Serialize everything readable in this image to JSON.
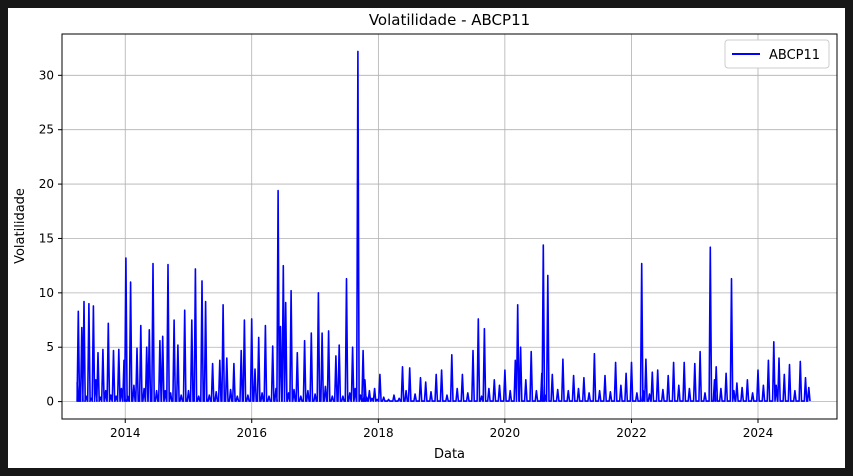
{
  "chart_data": {
    "type": "line",
    "title": "Volatilidade - ABCP11",
    "xlabel": "Data",
    "ylabel": "Volatilidade",
    "x_range": [
      "2013-01-01",
      "2025-04-01"
    ],
    "ylim": [
      -1.6,
      33.8
    ],
    "x_ticks": [
      "2014",
      "2016",
      "2018",
      "2020",
      "2022",
      "2024"
    ],
    "y_ticks": [
      "0",
      "5",
      "10",
      "15",
      "20",
      "25",
      "30"
    ],
    "grid": true,
    "legend_position": "top-right",
    "colors": {
      "series": "#0000ff"
    },
    "series": [
      {
        "name": "ABCP11",
        "x": [
          "2013-03-30",
          "2013-04-05",
          "2013-04-12",
          "2013-04-25",
          "2013-05-08",
          "2013-05-20",
          "2013-06-05",
          "2013-06-18",
          "2013-07-01",
          "2013-07-15",
          "2013-07-28",
          "2013-08-10",
          "2013-08-25",
          "2013-09-10",
          "2013-09-25",
          "2013-10-10",
          "2013-10-25",
          "2013-11-10",
          "2013-11-25",
          "2013-12-10",
          "2013-12-25",
          "2014-01-05",
          "2014-01-15",
          "2014-02-01",
          "2014-02-20",
          "2014-03-10",
          "2014-04-01",
          "2014-04-20",
          "2014-05-05",
          "2014-05-20",
          "2014-06-10",
          "2014-07-01",
          "2014-07-20",
          "2014-08-05",
          "2014-08-20",
          "2014-09-05",
          "2014-09-20",
          "2014-10-10",
          "2014-11-01",
          "2014-11-20",
          "2014-12-10",
          "2015-01-01",
          "2015-01-20",
          "2015-02-10",
          "2015-03-01",
          "2015-03-20",
          "2015-04-10",
          "2015-05-01",
          "2015-05-20",
          "2015-06-10",
          "2015-07-01",
          "2015-07-20",
          "2015-08-10",
          "2015-09-01",
          "2015-09-20",
          "2015-10-10",
          "2015-11-01",
          "2015-11-20",
          "2015-12-10",
          "2016-01-01",
          "2016-01-20",
          "2016-02-10",
          "2016-03-01",
          "2016-03-20",
          "2016-04-10",
          "2016-05-01",
          "2016-05-20",
          "2016-06-01",
          "2016-06-15",
          "2016-07-01",
          "2016-07-15",
          "2016-08-01",
          "2016-08-15",
          "2016-09-01",
          "2016-09-20",
          "2016-10-10",
          "2016-11-01",
          "2016-11-20",
          "2016-12-10",
          "2017-01-01",
          "2017-01-20",
          "2017-02-10",
          "2017-03-01",
          "2017-03-20",
          "2017-04-10",
          "2017-05-01",
          "2017-05-20",
          "2017-06-10",
          "2017-07-01",
          "2017-07-20",
          "2017-08-05",
          "2017-08-20",
          "2017-09-05",
          "2017-09-20",
          "2017-10-05",
          "2017-10-10",
          "2017-10-15",
          "2017-10-25",
          "2017-11-10",
          "2017-11-25",
          "2017-12-10",
          "2017-12-25",
          "2018-01-10",
          "2018-02-01",
          "2018-03-01",
          "2018-04-01",
          "2018-05-01",
          "2018-05-20",
          "2018-06-10",
          "2018-07-01",
          "2018-08-01",
          "2018-09-01",
          "2018-10-01",
          "2018-11-01",
          "2018-12-01",
          "2019-01-01",
          "2019-02-01",
          "2019-03-01",
          "2019-04-01",
          "2019-05-01",
          "2019-06-01",
          "2019-07-01",
          "2019-08-01",
          "2019-08-20",
          "2019-09-05",
          "2019-10-01",
          "2019-11-01",
          "2019-12-01",
          "2020-01-01",
          "2020-02-01",
          "2020-03-01",
          "2020-03-15",
          "2020-04-01",
          "2020-05-01",
          "2020-06-01",
          "2020-07-01",
          "2020-08-01",
          "2020-08-10",
          "2020-08-20",
          "2020-09-05",
          "2020-10-01",
          "2020-11-01",
          "2020-12-01",
          "2021-01-01",
          "2021-02-01",
          "2021-03-01",
          "2021-04-01",
          "2021-05-01",
          "2021-06-01",
          "2021-07-01",
          "2021-08-01",
          "2021-09-01",
          "2021-10-01",
          "2021-11-01",
          "2021-12-01",
          "2022-01-01",
          "2022-02-01",
          "2022-03-01",
          "2022-03-10",
          "2022-03-25",
          "2022-04-15",
          "2022-05-01",
          "2022-06-01",
          "2022-07-01",
          "2022-08-01",
          "2022-09-01",
          "2022-10-01",
          "2022-11-01",
          "2022-12-01",
          "2023-01-01",
          "2023-02-01",
          "2023-03-01",
          "2023-04-01",
          "2023-04-25",
          "2023-05-05",
          "2023-06-01",
          "2023-07-01",
          "2023-08-01",
          "2023-08-15",
          "2023-09-01",
          "2023-10-01",
          "2023-11-01",
          "2023-12-01",
          "2024-01-01",
          "2024-02-01",
          "2024-03-01",
          "2024-04-01",
          "2024-04-15",
          "2024-05-01",
          "2024-06-01",
          "2024-07-01",
          "2024-08-01",
          "2024-09-01",
          "2024-10-01",
          "2024-10-20"
        ],
        "y": [
          1.8,
          8.3,
          0.2,
          6.8,
          9.2,
          0.5,
          9.0,
          0.3,
          8.8,
          2.0,
          4.5,
          0.4,
          4.8,
          1.0,
          7.2,
          0.6,
          4.7,
          0.5,
          4.8,
          1.2,
          3.8,
          13.2,
          0.5,
          11.0,
          1.5,
          4.9,
          7.0,
          1.2,
          5.0,
          6.6,
          12.7,
          1.0,
          5.6,
          6.0,
          1.0,
          12.6,
          0.8,
          7.5,
          5.2,
          0.6,
          8.4,
          1.0,
          7.5,
          12.2,
          0.5,
          11.1,
          9.2,
          0.6,
          3.5,
          0.9,
          3.8,
          8.9,
          4.0,
          1.1,
          3.5,
          0.5,
          4.7,
          7.5,
          0.6,
          7.6,
          3.0,
          5.9,
          0.8,
          7.0,
          0.5,
          5.1,
          1.2,
          19.4,
          6.9,
          12.5,
          9.1,
          0.8,
          10.2,
          1.1,
          4.5,
          0.5,
          5.6,
          1.0,
          6.3,
          0.7,
          10.0,
          6.3,
          1.4,
          6.5,
          0.5,
          4.2,
          5.2,
          0.5,
          11.3,
          0.8,
          5.0,
          1.2,
          32.2,
          0.6,
          4.7,
          0.4,
          2.0,
          0.4,
          1.0,
          0.3,
          1.2,
          0.2,
          2.5,
          0.4,
          0.2,
          0.6,
          0.3,
          3.2,
          1.0,
          3.1,
          0.7,
          2.2,
          1.8,
          0.9,
          2.5,
          2.9,
          0.6,
          4.3,
          1.2,
          2.5,
          0.8,
          4.7,
          7.6,
          0.5,
          6.7,
          1.2,
          2.0,
          1.5,
          2.9,
          1.0,
          3.8,
          8.9,
          5.0,
          2.0,
          4.6,
          1.0,
          2.6,
          14.4,
          0.6,
          11.6,
          2.5,
          1.1,
          3.9,
          1.0,
          2.4,
          1.2,
          2.2,
          0.8,
          4.4,
          1.0,
          2.4,
          0.9,
          3.6,
          1.5,
          2.6,
          3.6,
          0.8,
          12.7,
          1.0,
          3.9,
          0.7,
          2.7,
          2.9,
          1.1,
          2.4,
          3.6,
          1.5,
          3.6,
          1.2,
          3.5,
          4.6,
          0.8,
          14.2,
          2.0,
          3.2,
          1.2,
          2.6,
          11.3,
          1.0,
          1.7,
          1.3,
          2.0,
          0.8,
          2.9,
          1.5,
          3.8,
          5.5,
          1.5,
          4.0,
          2.5,
          3.4,
          1.0,
          3.7,
          2.2,
          1.3
        ]
      }
    ]
  }
}
